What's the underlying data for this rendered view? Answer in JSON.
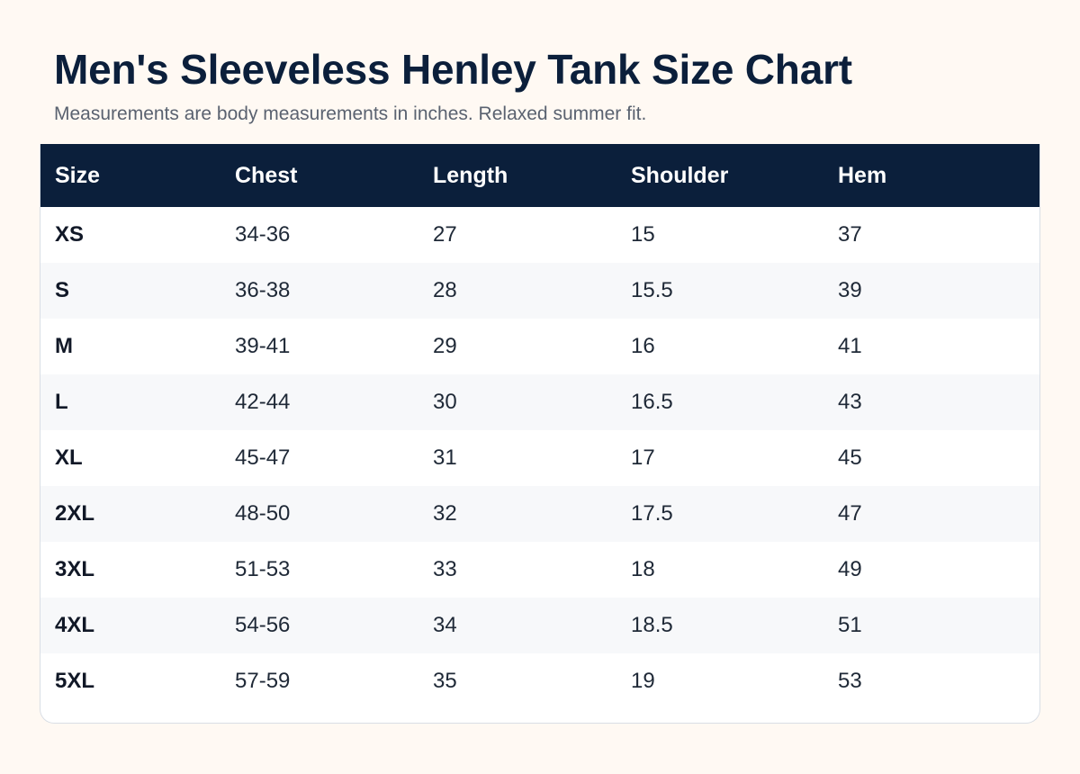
{
  "title": "Men's Sleeveless Henley Tank Size Chart",
  "subtitle": "Measurements are body measurements in inches. Relaxed summer fit.",
  "table": {
    "headers": [
      "Size",
      "Chest",
      "Length",
      "Shoulder",
      "Hem"
    ],
    "rows": [
      [
        "XS",
        "34-36",
        "27",
        "15",
        "37"
      ],
      [
        "S",
        "36-38",
        "28",
        "15.5",
        "39"
      ],
      [
        "M",
        "39-41",
        "29",
        "16",
        "41"
      ],
      [
        "L",
        "42-44",
        "30",
        "16.5",
        "43"
      ],
      [
        "XL",
        "45-47",
        "31",
        "17",
        "45"
      ],
      [
        "2XL",
        "48-50",
        "32",
        "17.5",
        "47"
      ],
      [
        "3XL",
        "51-53",
        "33",
        "18",
        "49"
      ],
      [
        "4XL",
        "54-56",
        "34",
        "18.5",
        "51"
      ],
      [
        "5XL",
        "57-59",
        "35",
        "19",
        "53"
      ]
    ]
  },
  "colors": {
    "header_bg": "#0b1f3b",
    "page_bg": "#fff9f3",
    "stripe_bg": "#f7f8fa"
  }
}
